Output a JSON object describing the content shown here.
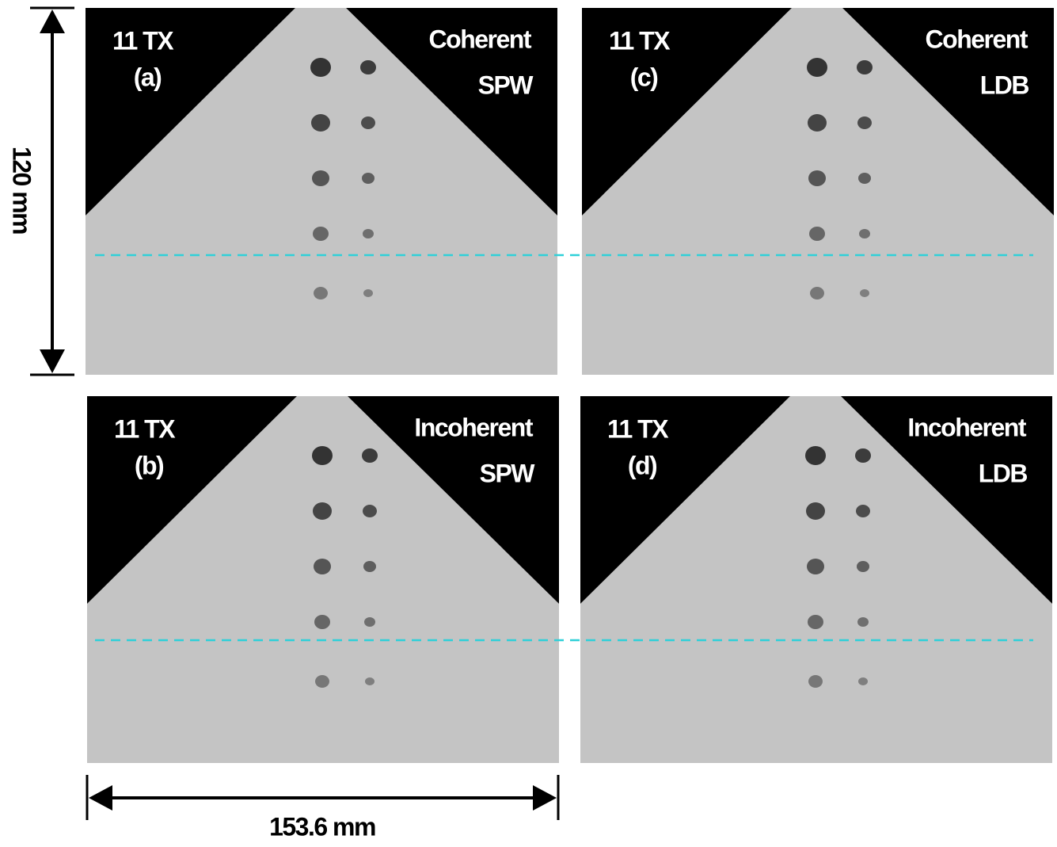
{
  "panels": [
    {
      "tx": "11 TX",
      "label": "(a)",
      "mode": "Coherent",
      "beam": "SPW"
    },
    {
      "tx": "11 TX",
      "label": "(b)",
      "mode": "Incoherent",
      "beam": "SPW"
    },
    {
      "tx": "11 TX",
      "label": "(c)",
      "mode": "Coherent",
      "beam": "LDB"
    },
    {
      "tx": "11 TX",
      "label": "(d)",
      "mode": "Incoherent",
      "beam": "LDB"
    }
  ],
  "dimensions": {
    "height": "120 mm",
    "width": "153.6 mm"
  }
}
